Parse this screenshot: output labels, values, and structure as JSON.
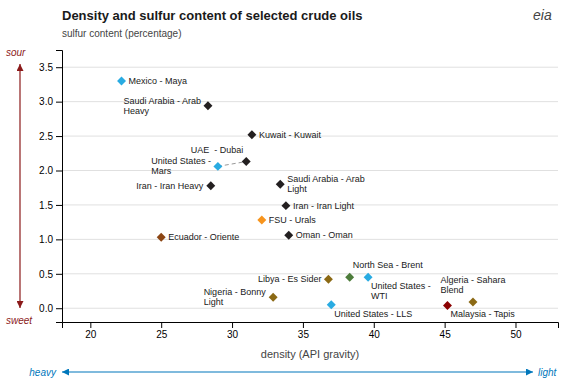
{
  "chart_data": {
    "type": "scatter",
    "title": "Density and sulfur content of selected crude oils",
    "subtitle": "sulfur content (percentage)",
    "xlabel": "density (API gravity)",
    "x": [
      22.2,
      28.3,
      31.4,
      29.0,
      31.0,
      28.5,
      33.4,
      33.8,
      32.1,
      34.0,
      25.0,
      38.3,
      36.8,
      39.6,
      32.9,
      37.0,
      47.0,
      45.2
    ],
    "values": [
      3.3,
      2.94,
      2.52,
      2.06,
      2.13,
      1.78,
      1.8,
      1.49,
      1.28,
      1.06,
      1.03,
      0.45,
      0.42,
      0.45,
      0.16,
      0.05,
      0.09,
      0.04
    ],
    "colors": [
      "#29ABE2",
      "#231F20",
      "#231F20",
      "#29ABE2",
      "#231F20",
      "#231F20",
      "#231F20",
      "#231F20",
      "#F7941D",
      "#231F20",
      "#8B4513",
      "#4D7C3B",
      "#8B6914",
      "#29ABE2",
      "#8B6914",
      "#29ABE2",
      "#8B6914",
      "#8B0000"
    ],
    "labels": [
      "Mexico - Maya",
      "Saudi Arabia - Arab\nHeavy",
      "Kuwait - Kuwait",
      "United States -\nMars",
      "UAE  - Dubai",
      "Iran - Iran Heavy",
      "Saudi Arabia - Arab\nLight",
      "Iran - Iran Light",
      "FSU - Urals",
      "Oman - Oman",
      "Ecuador - Oriente",
      "North Sea - Brent",
      "Libya - Es Sider",
      "United States -\nWTI",
      "Nigeria - Bonny\nLight",
      "United States - LLS",
      "Algeria - Sahara\nBlend",
      "Malaysia - Tapis"
    ],
    "dashed_line": {
      "x": [
        29.0,
        31.0
      ],
      "values": [
        2.06,
        2.13
      ],
      "line_style": "dashed",
      "color": "#999999"
    },
    "xlim": [
      18,
      53
    ],
    "ylim": [
      -0.2,
      3.75
    ],
    "xticks": [
      20,
      25,
      30,
      35,
      40,
      45,
      50
    ],
    "yticks": [
      {
        "value": 0.0,
        "label": "0.0"
      },
      0.5,
      {
        "value": 1.0,
        "label": "1.0"
      },
      1.5,
      {
        "value": 2.0,
        "label": "2.0"
      },
      2.5,
      {
        "value": 3.0,
        "label": "3.0"
      },
      3.5
    ],
    "grid": "y",
    "y_arrow": {
      "high": "sour",
      "low": "sweet",
      "color": "#8B1A1A"
    },
    "x_arrow": {
      "low": "heavy",
      "high": "light",
      "color": "#0077BB"
    },
    "logo": "eia"
  }
}
